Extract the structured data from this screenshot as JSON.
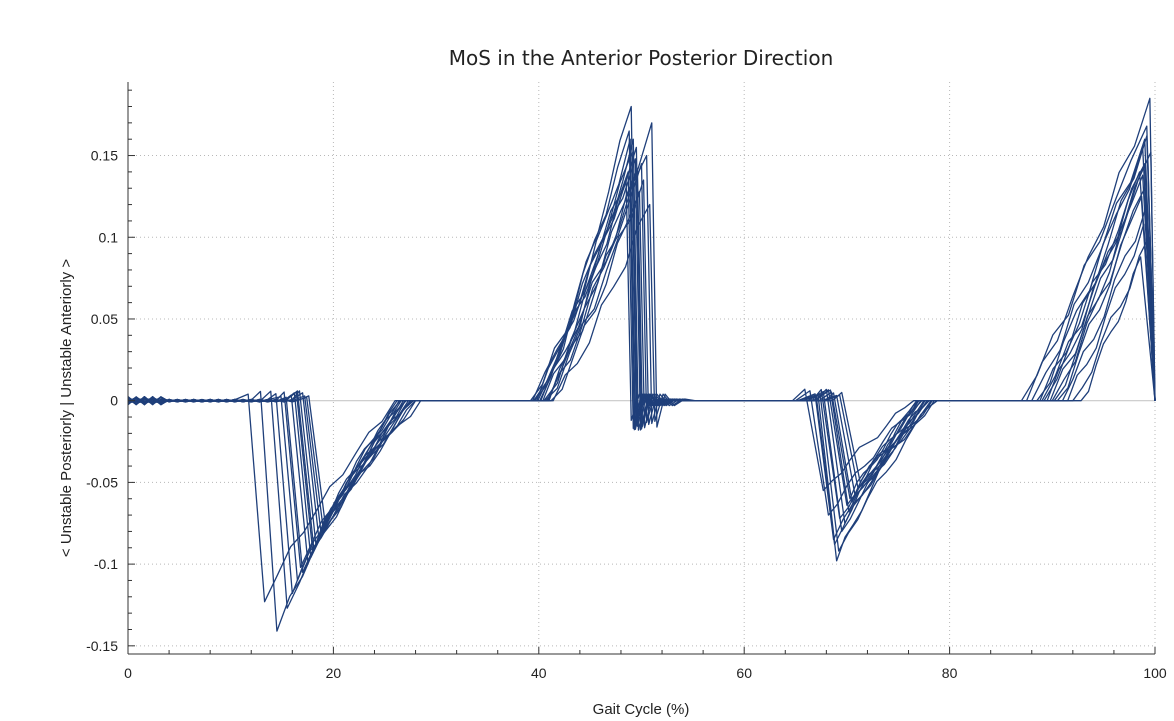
{
  "chart_data": {
    "type": "line",
    "title": "MoS in the Anterior Posterior Direction",
    "xlabel": "Gait Cycle (%)",
    "ylabel": "< Unstable Posteriorly | Unstable Anteriorly >",
    "xlim": [
      0,
      100
    ],
    "ylim": [
      -0.155,
      0.195
    ],
    "xticks": [
      0,
      20,
      40,
      60,
      80,
      100
    ],
    "xtick_labels": [
      "0",
      "20",
      "40",
      "60",
      "80",
      "100"
    ],
    "yticks": [
      -0.15,
      -0.1,
      -0.05,
      0,
      0.05,
      0.1,
      0.15
    ],
    "ytick_labels": [
      "-0.15",
      "-0.1",
      "-0.05",
      "0",
      "0.05",
      "0.1",
      "0.15"
    ],
    "grid": true,
    "legend": "none",
    "line_color": "#1f3f7a",
    "zero_line_color": "#c8c8c8",
    "series_template": {
      "onset1": 17.5,
      "min1": -0.09,
      "back1": 27,
      "rise2": 41,
      "peak2": 0.13,
      "drop2": 49,
      "onset3": 67.5,
      "min3": -0.065,
      "back3": 77.5,
      "rise4": 89.5,
      "peak4": 0.15,
      "drop4": 99
    },
    "series": [
      {
        "onset1": 12.3,
        "min1": -0.123,
        "back1": 26,
        "rise2": 40.2,
        "peak2": 0.135,
        "drop2": 48.5,
        "onset3": 66.5,
        "min3": -0.055,
        "back3": 76.5,
        "rise4": 88.0,
        "peak4": 0.168,
        "drop4": 99.2
      },
      {
        "onset1": 13.5,
        "min1": -0.141,
        "back1": 27,
        "rise2": 40.8,
        "peak2": 0.165,
        "drop2": 48.8,
        "onset3": 67.0,
        "min3": -0.07,
        "back3": 77.0,
        "rise4": 88.5,
        "peak4": 0.185,
        "drop4": 99.5
      },
      {
        "onset1": 14.5,
        "min1": -0.127,
        "back1": 27.5,
        "rise2": 41.2,
        "peak2": 0.18,
        "drop2": 49.0,
        "onset3": 67.5,
        "min3": -0.085,
        "back3": 78.0,
        "rise4": 89.0,
        "peak4": 0.16,
        "drop4": 99.0
      },
      {
        "onset1": 15.0,
        "min1": -0.118,
        "back1": 26.5,
        "rise2": 41.5,
        "peak2": 0.17,
        "drop2": 51.0,
        "onset3": 67.8,
        "min3": -0.098,
        "back3": 77.2,
        "rise4": 89.5,
        "peak4": 0.155,
        "drop4": 98.8
      },
      {
        "onset1": 15.5,
        "min1": -0.11,
        "back1": 28,
        "rise2": 40.5,
        "peak2": 0.155,
        "drop2": 49.5,
        "onset3": 68.0,
        "min3": -0.092,
        "back3": 78.5,
        "rise4": 90.0,
        "peak4": 0.148,
        "drop4": 99.3
      },
      {
        "onset1": 16.0,
        "min1": -0.105,
        "back1": 27,
        "rise2": 41.8,
        "peak2": 0.145,
        "drop2": 50.0,
        "onset3": 68.3,
        "min3": -0.08,
        "back3": 77.8,
        "rise4": 90.5,
        "peak4": 0.14,
        "drop4": 98.5
      },
      {
        "onset1": 16.5,
        "min1": -0.098,
        "back1": 26.8,
        "rise2": 42.0,
        "peak2": 0.16,
        "drop2": 49.2,
        "onset3": 68.6,
        "min3": -0.075,
        "back3": 76.8,
        "rise4": 91.0,
        "peak4": 0.13,
        "drop4": 99.0
      },
      {
        "onset1": 17.0,
        "min1": -0.093,
        "back1": 27.8,
        "rise2": 40.9,
        "peak2": 0.15,
        "drop2": 50.5,
        "onset3": 69.0,
        "min3": -0.068,
        "back3": 78.2,
        "rise4": 91.5,
        "peak4": 0.125,
        "drop4": 98.7
      },
      {
        "onset1": 17.3,
        "min1": -0.088,
        "back1": 26.2,
        "rise2": 41.4,
        "peak2": 0.14,
        "drop2": 48.7,
        "onset3": 69.3,
        "min3": -0.062,
        "back3": 77.5,
        "rise4": 92.0,
        "peak4": 0.118,
        "drop4": 99.1
      },
      {
        "onset1": 17.6,
        "min1": -0.085,
        "back1": 28.5,
        "rise2": 42.2,
        "peak2": 0.128,
        "drop2": 49.8,
        "onset3": 69.6,
        "min3": -0.058,
        "back3": 78.8,
        "rise4": 92.5,
        "peak4": 0.108,
        "drop4": 98.9
      },
      {
        "onset1": 17.8,
        "min1": -0.081,
        "back1": 27.3,
        "rise2": 41.6,
        "peak2": 0.135,
        "drop2": 50.2,
        "onset3": 69.9,
        "min3": -0.054,
        "back3": 77.0,
        "rise4": 93.0,
        "peak4": 0.1,
        "drop4": 99.4
      },
      {
        "onset1": 18.0,
        "min1": -0.078,
        "back1": 26.6,
        "rise2": 40.6,
        "peak2": 0.148,
        "drop2": 49.4,
        "onset3": 70.1,
        "min3": -0.05,
        "back3": 78.0,
        "rise4": 93.8,
        "peak4": 0.088,
        "drop4": 98.6
      },
      {
        "onset1": 18.2,
        "min1": -0.075,
        "back1": 28.0,
        "rise2": 42.4,
        "peak2": 0.12,
        "drop2": 50.8,
        "onset3": 68.8,
        "min3": -0.064,
        "back3": 77.3,
        "rise4": 90.8,
        "peak4": 0.152,
        "drop4": 99.6
      },
      {
        "onset1": 16.8,
        "min1": -0.096,
        "back1": 27.6,
        "rise2": 41.1,
        "peak2": 0.16,
        "drop2": 48.9,
        "onset3": 68.1,
        "min3": -0.072,
        "back3": 78.3,
        "rise4": 89.8,
        "peak4": 0.145,
        "drop4": 99.0
      },
      {
        "onset1": 17.1,
        "min1": -0.091,
        "back1": 26.4,
        "rise2": 41.9,
        "peak2": 0.142,
        "drop2": 49.6,
        "onset3": 69.1,
        "min3": -0.06,
        "back3": 76.9,
        "rise4": 91.2,
        "peak4": 0.138,
        "drop4": 98.8
      },
      {
        "onset1": 15.8,
        "min1": -0.102,
        "back1": 27.1,
        "rise2": 40.4,
        "peak2": 0.152,
        "drop2": 49.1,
        "onset3": 67.6,
        "min3": -0.088,
        "back3": 77.6,
        "rise4": 90.2,
        "peak4": 0.162,
        "drop4": 99.2
      }
    ]
  }
}
